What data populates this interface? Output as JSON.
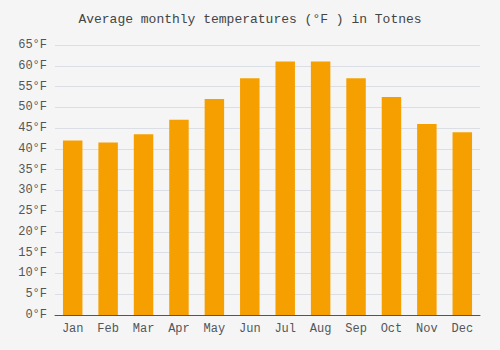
{
  "chart_data": {
    "type": "bar",
    "title": "Average monthly temperatures (°F ) in Totnes",
    "categories": [
      "Jan",
      "Feb",
      "Mar",
      "Apr",
      "May",
      "Jun",
      "Jul",
      "Aug",
      "Sep",
      "Oct",
      "Nov",
      "Dec"
    ],
    "values": [
      42,
      41.5,
      43.5,
      47,
      52,
      57,
      61,
      61,
      57,
      52.5,
      46,
      44
    ],
    "color": "#F5A000",
    "ylim": [
      0,
      65
    ],
    "yticks": [
      {
        "value": 0,
        "label": "0°F"
      },
      {
        "value": 5,
        "label": "5°F"
      },
      {
        "value": 10,
        "label": "10°F"
      },
      {
        "value": 15,
        "label": "15°F"
      },
      {
        "value": 20,
        "label": "20°F"
      },
      {
        "value": 25,
        "label": "25°F"
      },
      {
        "value": 30,
        "label": "30°F"
      },
      {
        "value": 35,
        "label": "35°F"
      },
      {
        "value": 40,
        "label": "40°F"
      },
      {
        "value": 45,
        "label": "45°F"
      },
      {
        "value": 50,
        "label": "50°F"
      },
      {
        "value": 55,
        "label": "55°F"
      },
      {
        "value": 60,
        "label": "60°F"
      },
      {
        "value": 65,
        "label": "65°F"
      }
    ],
    "grid": true
  }
}
